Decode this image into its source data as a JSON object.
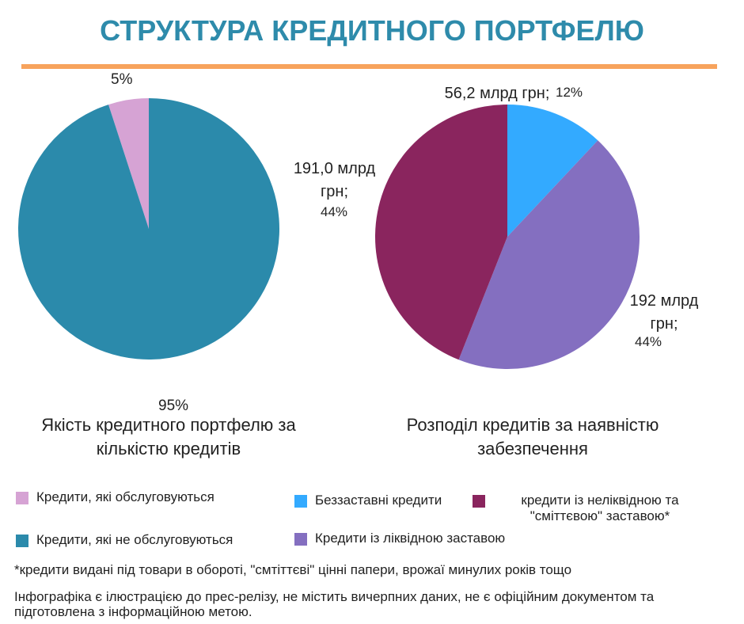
{
  "title": "СТРУКТУРА КРЕДИТНОГО ПОРТФЕЛЮ",
  "chart_data": [
    {
      "type": "pie",
      "title": "Якість кредитного портфелю за кількістю кредитів",
      "direction": "counterclockwise",
      "categories": [
        "Кредити, які обслуговуються",
        "Кредити, які не обслуговуються"
      ],
      "values": [
        5,
        95
      ],
      "value_labels": [
        "5%",
        "95%"
      ],
      "colors": [
        "#d6a3d4",
        "#2b8aab"
      ]
    },
    {
      "type": "pie",
      "title": "Розподіл кредитів за наявністю забезпечення",
      "direction": "clockwise",
      "categories": [
        "Беззаставні кредити",
        "Кредити із ліквідною заставою",
        "кредити із неліквідною та \"сміттєвою\" заставою*"
      ],
      "values": [
        12,
        44,
        44
      ],
      "value_labels": [
        "12%",
        "44%",
        "44%"
      ],
      "amount_labels": [
        "56,2 млрд грн;",
        "192 млрд грн;",
        "191,0 млрд грн;"
      ],
      "colors": [
        "#33aaff",
        "#846fc0",
        "#8a255e"
      ]
    }
  ],
  "footnote": "*кредити видані під товари в обороті, \"смтіттєві\" цінні папери, врожаї минулих років тощо",
  "disclaimer": "Інфографіка є ілюстрацією до прес-релізу,  не містить вичерпних даних, не є офіційним документом та підготовлена з інформаційною метою."
}
